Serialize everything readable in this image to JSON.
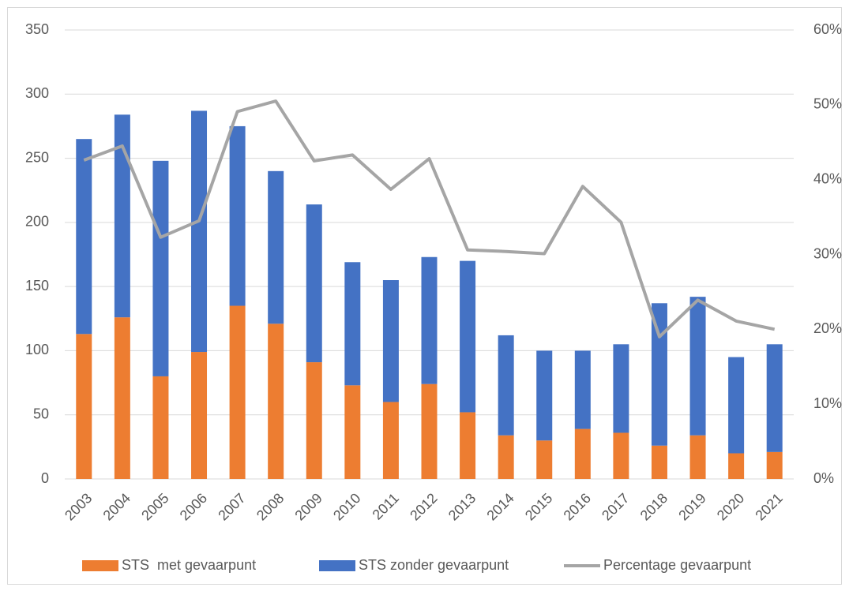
{
  "chart_data": {
    "type": "bar",
    "stacked": true,
    "categories": [
      "2003",
      "2004",
      "2005",
      "2006",
      "2007",
      "2008",
      "2009",
      "2010",
      "2011",
      "2012",
      "2013",
      "2014",
      "2015",
      "2016",
      "2017",
      "2018",
      "2019",
      "2020",
      "2021"
    ],
    "series": [
      {
        "name": "STS  met gevaarpunt",
        "color": "#ed7d31",
        "type": "bar",
        "values": [
          113,
          126,
          80,
          99,
          135,
          121,
          91,
          73,
          60,
          74,
          52,
          34,
          30,
          39,
          36,
          26,
          34,
          20,
          21
        ]
      },
      {
        "name": "STS zonder gevaarpunt",
        "color": "#4472c4",
        "type": "bar",
        "values": [
          152,
          158,
          168,
          188,
          140,
          119,
          123,
          96,
          95,
          99,
          118,
          78,
          70,
          61,
          69,
          111,
          108,
          75,
          84
        ]
      },
      {
        "name": "Percentage gevaarpunt",
        "color": "#a5a5a5",
        "type": "line",
        "axis": "y2",
        "values": [
          42.6,
          44.5,
          32.3,
          34.5,
          49.1,
          50.5,
          42.5,
          43.3,
          38.7,
          42.8,
          30.6,
          30.4,
          30.1,
          39.1,
          34.3,
          19.0,
          23.9,
          21.1,
          20.0
        ]
      }
    ],
    "ylim": [
      0,
      350
    ],
    "yticks": [
      0,
      50,
      100,
      150,
      200,
      250,
      300,
      350
    ],
    "y2lim": [
      0,
      60
    ],
    "y2ticks": [
      {
        "value": 0,
        "label": "0%"
      },
      {
        "value": 10,
        "label": "10%"
      },
      {
        "value": 20,
        "label": "20%"
      },
      {
        "value": 30,
        "label": "30%"
      },
      {
        "value": 40,
        "label": "40%"
      },
      {
        "value": 50,
        "label": "50%"
      },
      {
        "value": 60,
        "label": "60%"
      }
    ],
    "grid": true,
    "legend": "bottom"
  }
}
